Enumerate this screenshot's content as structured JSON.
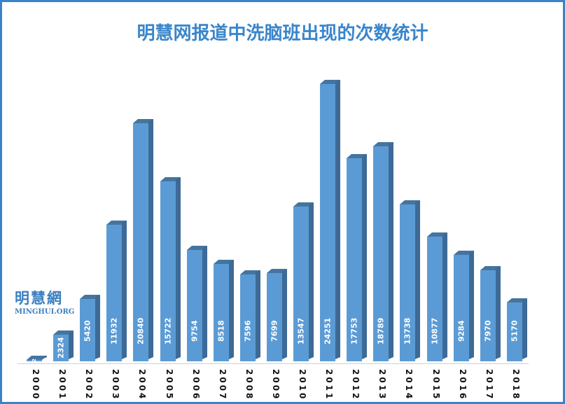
{
  "title": "明慧网报道中洗脑班出现的次数统计",
  "logo": {
    "cn": "明慧網",
    "en": "MINGHUI.ORG"
  },
  "colors": {
    "bar_front": "#5b9bd5",
    "bar_side": "#3d6a96",
    "title": "#3a86cc",
    "border": "#3a83c9"
  },
  "chart_data": {
    "type": "bar",
    "title": "明慧网报道中洗脑班出现的次数统计",
    "xlabel": "",
    "ylabel": "",
    "categories": [
      "2000",
      "2001",
      "2002",
      "2003",
      "2004",
      "2005",
      "2006",
      "2007",
      "2008",
      "2009",
      "2010",
      "2011",
      "2012",
      "2013",
      "2014",
      "2015",
      "2016",
      "2017",
      "2018"
    ],
    "values": [
      2,
      2324,
      5420,
      11932,
      20840,
      15722,
      9754,
      8518,
      7596,
      7699,
      13547,
      24251,
      17753,
      18789,
      13738,
      10877,
      9284,
      7970,
      5170
    ],
    "data_labels": [
      "2",
      "2324",
      "5420",
      "11932",
      "20840",
      "15722",
      "9754",
      "8518",
      "7596",
      "7699",
      "13547",
      "24251",
      "17753",
      "18789",
      "13738",
      "10877",
      "9284",
      "7970",
      "5170"
    ],
    "ylim": [
      0,
      25000
    ],
    "grid": false,
    "legend": "none",
    "style": "3d-column, vertical data labels, vertical x tick labels"
  }
}
